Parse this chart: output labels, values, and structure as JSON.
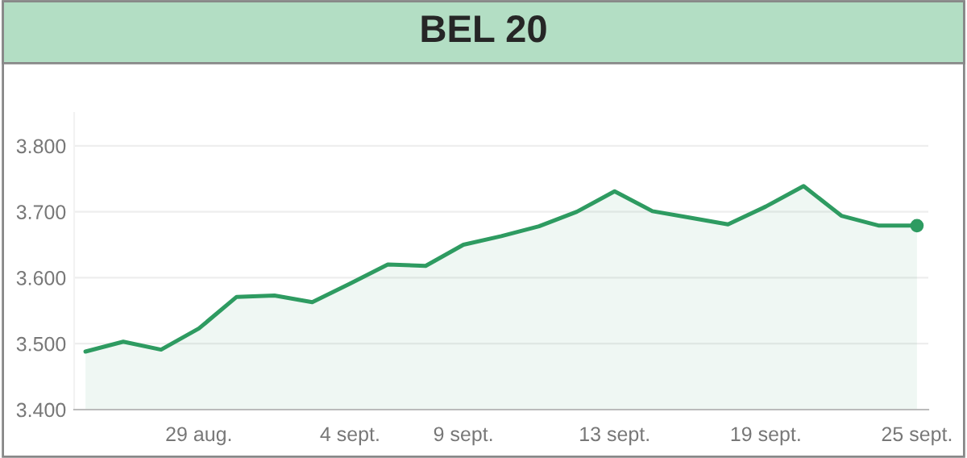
{
  "chart_data": {
    "type": "area",
    "title": "BEL 20",
    "categories": [
      null,
      null,
      null,
      "29 aug.",
      null,
      null,
      null,
      "4 sept.",
      null,
      null,
      "9 sept.",
      null,
      null,
      null,
      "13 sept.",
      null,
      null,
      null,
      "19 sept.",
      null,
      null,
      null,
      "25 sept."
    ],
    "series": [
      {
        "color": "#2e9b61",
        "values": [
          3488,
          3503,
          3491,
          3523,
          3571,
          3573,
          3563,
          3591,
          3620,
          3618,
          3650,
          3663,
          3678,
          3700,
          3731,
          3701,
          3691,
          3681,
          3708,
          3739,
          3694,
          3679,
          3679
        ]
      }
    ],
    "ylim": [
      3400,
      3850
    ],
    "yticks": [
      {
        "value": 3400,
        "label": "3.400"
      },
      {
        "value": 3500,
        "label": "3.500"
      },
      {
        "value": 3600,
        "label": "3.600"
      },
      {
        "value": 3700,
        "label": "3.700"
      },
      {
        "value": 3800,
        "label": "3.800"
      }
    ],
    "grid": "y",
    "marker": "none",
    "line_style": "solid",
    "legend": false
  }
}
